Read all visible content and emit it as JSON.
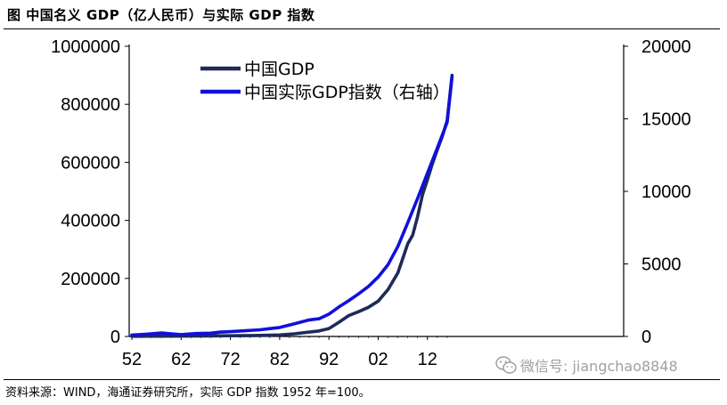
{
  "title": "图   中国名义 GDP（亿人民币）与实际 GDP 指数",
  "source": "资料来源：WIND，海通证券研究所，实际 GDP 指数 1952 年=100。",
  "watermark": "微信号: jiangchao8848",
  "colors": {
    "gdp": "#1f2a5a",
    "real_index": "#1010dd",
    "axis": "#000000"
  },
  "chart_data": {
    "type": "line",
    "x_ticks": [
      "52",
      "62",
      "72",
      "82",
      "92",
      "02",
      "12"
    ],
    "x_range": [
      1952,
      2017
    ],
    "y_left": {
      "ticks": [
        "0",
        "200000",
        "400000",
        "600000",
        "800000",
        "1000000"
      ],
      "range": [
        0,
        1000000
      ]
    },
    "y_right": {
      "ticks": [
        "0",
        "5000",
        "10000",
        "15000",
        "20000"
      ],
      "range": [
        0,
        20000
      ]
    },
    "legend": [
      "中国GDP",
      "中国实际GDP指数（右轴）"
    ],
    "series": [
      {
        "name": "中国GDP",
        "axis": "left",
        "x": [
          1952,
          1957,
          1962,
          1967,
          1972,
          1977,
          1982,
          1985,
          1988,
          1990,
          1992,
          1994,
          1996,
          1998,
          2000,
          2002,
          2004,
          2006,
          2008,
          2009,
          2010,
          2011,
          2012,
          2013,
          2014,
          2015,
          2016,
          2017
        ],
        "values": [
          679,
          1069,
          1149,
          1778,
          2518,
          3221,
          5323,
          9099,
          15180,
          18873,
          27195,
          48638,
          71814,
          85196,
          100280,
          121717,
          161840,
          219438,
          319516,
          349081,
          413030,
          489301,
          540367,
          595244,
          643974,
          689052,
          744127,
          900000
        ]
      },
      {
        "name": "中国实际GDP指数（右轴）",
        "axis": "right",
        "x": [
          1952,
          1955,
          1958,
          1960,
          1962,
          1965,
          1968,
          1970,
          1972,
          1975,
          1978,
          1980,
          1982,
          1985,
          1988,
          1990,
          1992,
          1994,
          1996,
          1998,
          2000,
          2002,
          2004,
          2006,
          2008,
          2010,
          2012,
          2014,
          2016,
          2017
        ],
        "values": [
          100,
          160,
          240,
          180,
          130,
          200,
          230,
          300,
          330,
          390,
          460,
          540,
          620,
          870,
          1140,
          1220,
          1540,
          2030,
          2460,
          2930,
          3440,
          4100,
          4960,
          6210,
          7840,
          9510,
          11260,
          13000,
          14760,
          17900
        ]
      }
    ]
  }
}
